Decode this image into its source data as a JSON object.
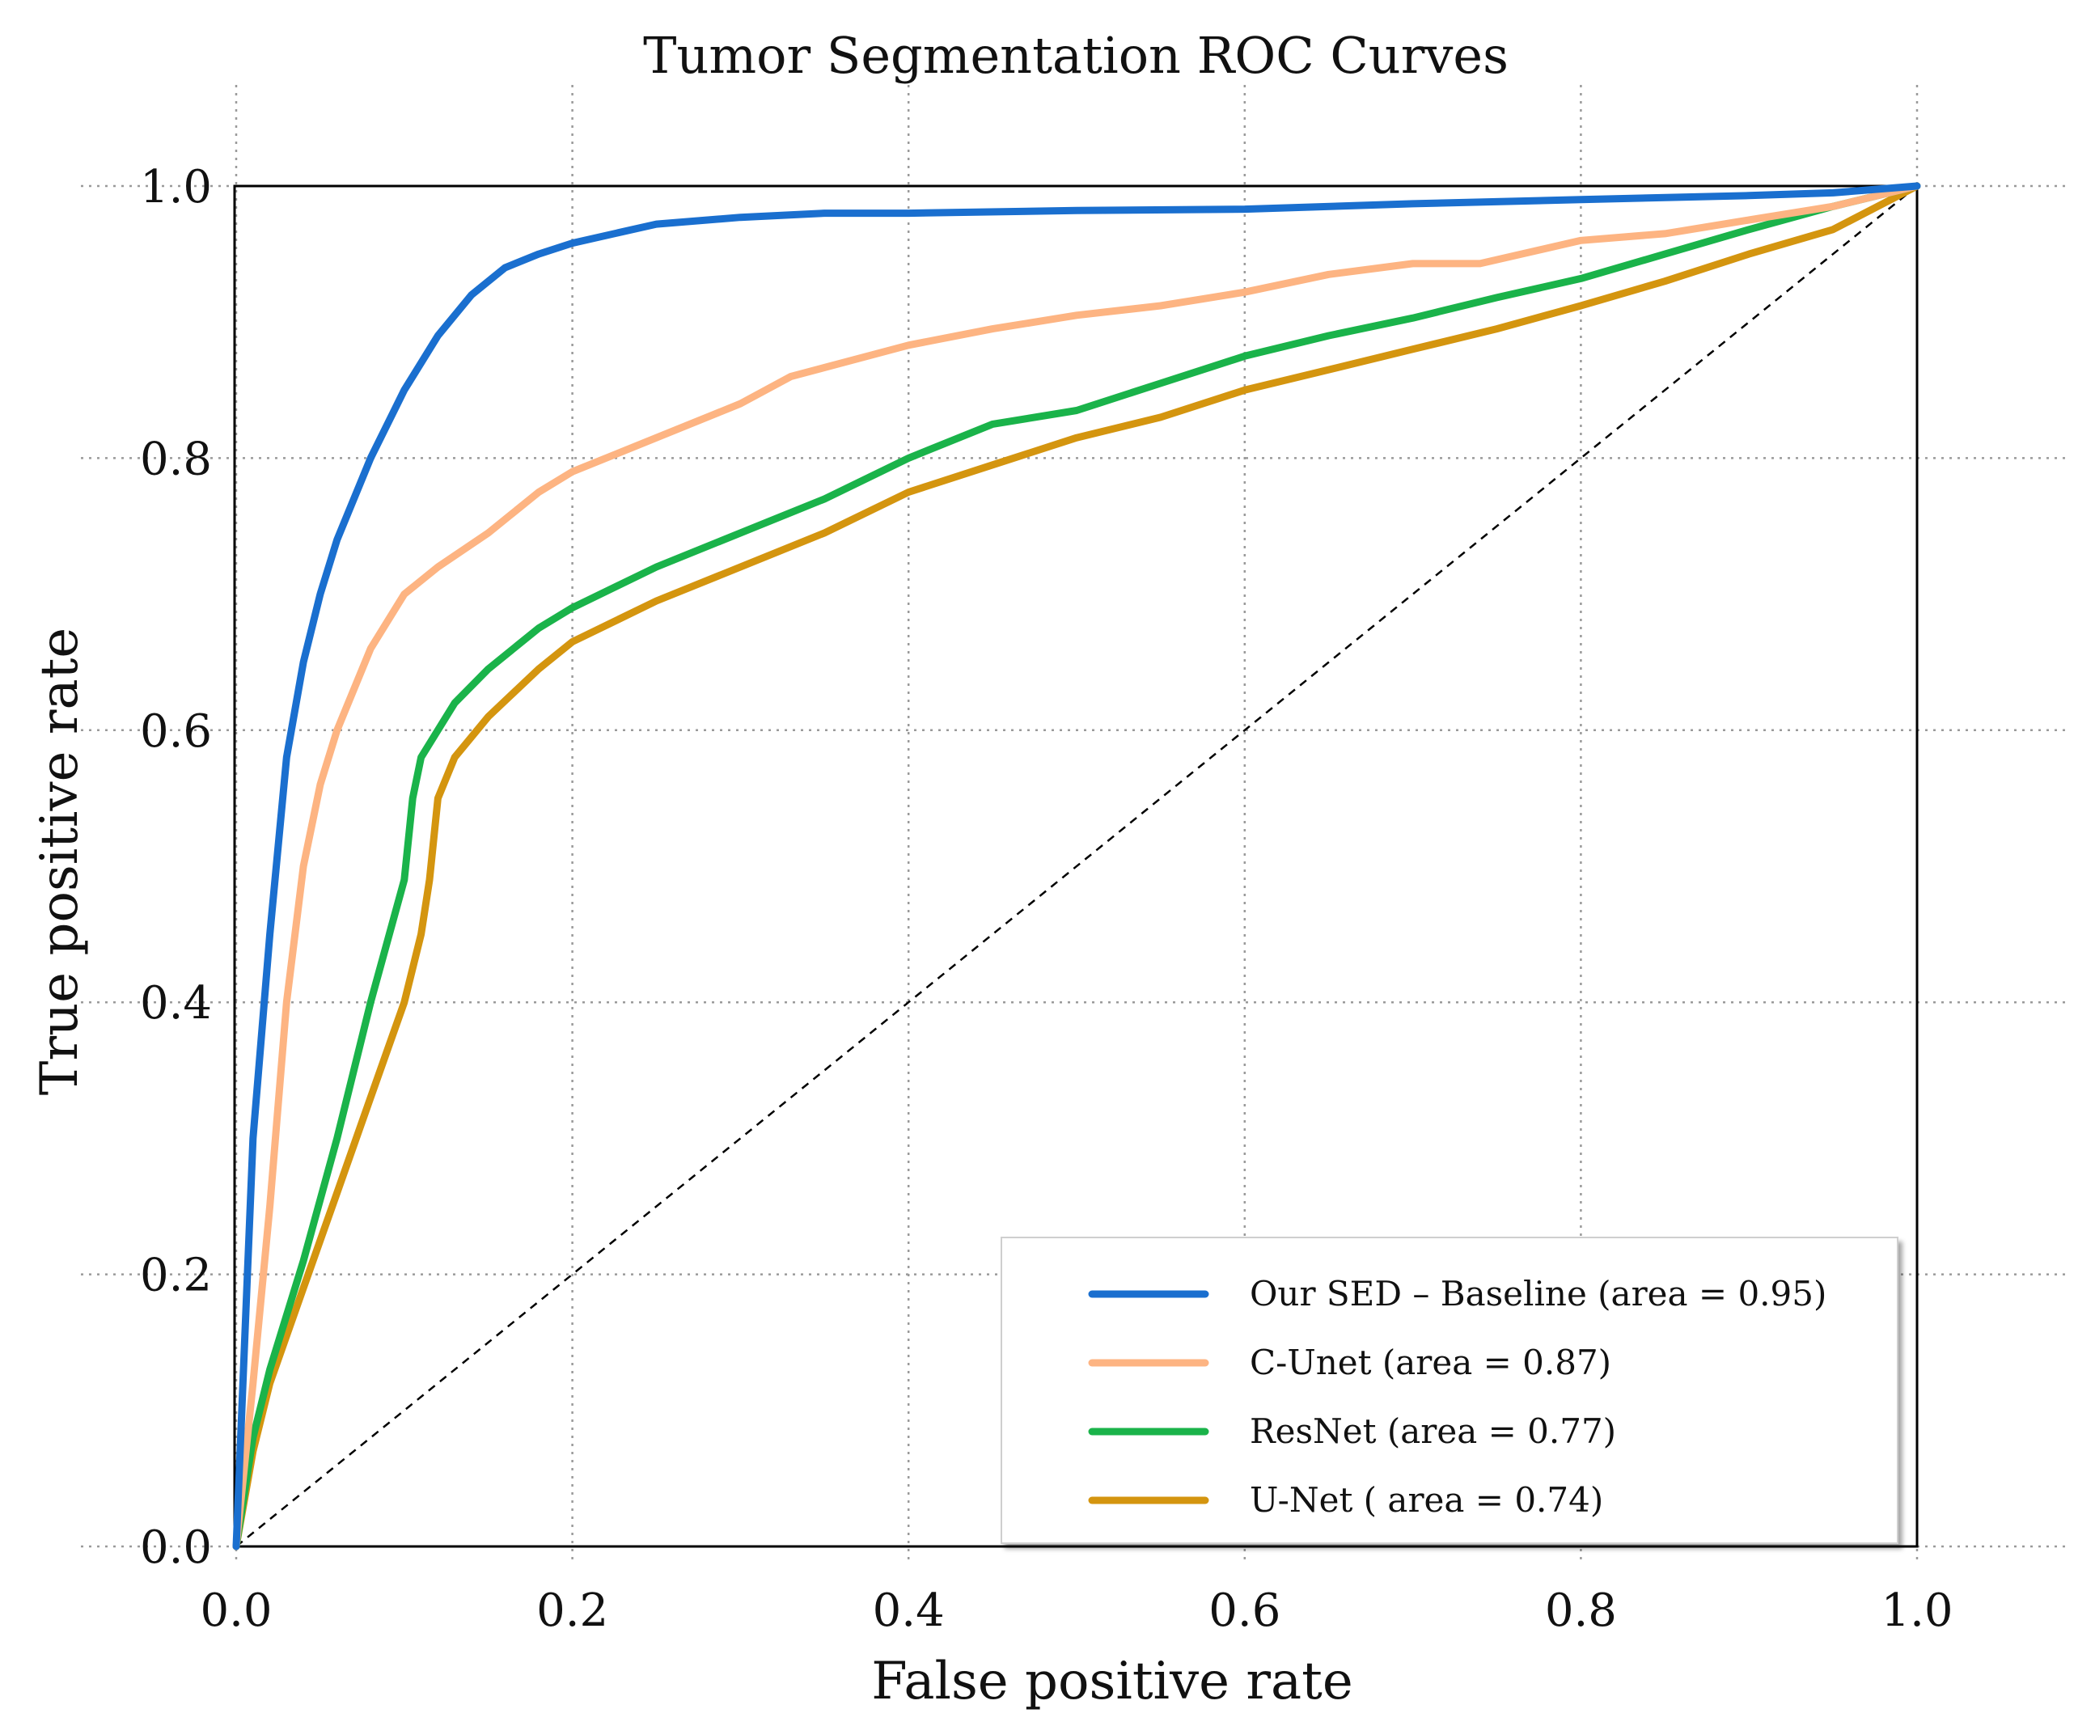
{
  "chart_data": {
    "type": "line",
    "title": "Tumor Segmentation ROC Curves",
    "xlabel": "False positive rate",
    "ylabel": "True positive rate",
    "xlim": [
      0.0,
      1.0
    ],
    "ylim": [
      0.0,
      1.0
    ],
    "xticks": [
      0.0,
      0.2,
      0.4,
      0.6,
      0.8,
      1.0
    ],
    "yticks": [
      0.0,
      0.2,
      0.4,
      0.6,
      0.8,
      1.0
    ],
    "xtick_labels": [
      "0.0",
      "0.2",
      "0.4",
      "0.6",
      "0.8",
      "1.0"
    ],
    "ytick_labels": [
      "0.0",
      "0.2",
      "0.4",
      "0.6",
      "0.8",
      "1.0"
    ],
    "grid": true,
    "legend_position": "bottom-right",
    "reference_line": {
      "x": [
        0,
        1
      ],
      "y": [
        0,
        1
      ],
      "style": "dashed",
      "color": "#000000"
    },
    "series": [
      {
        "name": "Our SED – Baseline (area = 0.95)",
        "color": "#1a6fcf",
        "x": [
          0.0,
          0.005,
          0.01,
          0.02,
          0.03,
          0.04,
          0.05,
          0.06,
          0.08,
          0.1,
          0.12,
          0.14,
          0.16,
          0.18,
          0.2,
          0.25,
          0.3,
          0.35,
          0.4,
          0.5,
          0.6,
          0.7,
          0.8,
          0.9,
          0.95,
          1.0
        ],
        "y": [
          0.0,
          0.15,
          0.3,
          0.45,
          0.58,
          0.65,
          0.7,
          0.74,
          0.8,
          0.85,
          0.89,
          0.92,
          0.94,
          0.95,
          0.958,
          0.972,
          0.977,
          0.98,
          0.98,
          0.982,
          0.983,
          0.987,
          0.99,
          0.993,
          0.995,
          1.0
        ]
      },
      {
        "name": "C-Unet (area = 0.87)",
        "color": "#fdb482",
        "x": [
          0.0,
          0.01,
          0.02,
          0.03,
          0.04,
          0.05,
          0.06,
          0.08,
          0.1,
          0.12,
          0.15,
          0.18,
          0.2,
          0.25,
          0.3,
          0.33,
          0.4,
          0.45,
          0.5,
          0.55,
          0.58,
          0.6,
          0.65,
          0.7,
          0.74,
          0.8,
          0.85,
          0.9,
          0.95,
          1.0
        ],
        "y": [
          0.0,
          0.12,
          0.25,
          0.4,
          0.5,
          0.56,
          0.6,
          0.66,
          0.7,
          0.72,
          0.745,
          0.775,
          0.79,
          0.815,
          0.84,
          0.86,
          0.883,
          0.895,
          0.905,
          0.912,
          0.918,
          0.922,
          0.935,
          0.943,
          0.943,
          0.96,
          0.965,
          0.975,
          0.985,
          1.0
        ]
      },
      {
        "name": "ResNet (area = 0.77)",
        "color": "#1ab34a",
        "x": [
          0.0,
          0.01,
          0.02,
          0.04,
          0.06,
          0.08,
          0.1,
          0.105,
          0.11,
          0.13,
          0.15,
          0.18,
          0.2,
          0.25,
          0.3,
          0.35,
          0.4,
          0.45,
          0.5,
          0.55,
          0.6,
          0.65,
          0.7,
          0.75,
          0.8,
          0.85,
          0.9,
          0.95,
          1.0
        ],
        "y": [
          0.0,
          0.08,
          0.13,
          0.21,
          0.3,
          0.4,
          0.49,
          0.55,
          0.58,
          0.62,
          0.645,
          0.675,
          0.69,
          0.72,
          0.745,
          0.77,
          0.8,
          0.825,
          0.835,
          0.855,
          0.875,
          0.89,
          0.903,
          0.918,
          0.932,
          0.95,
          0.968,
          0.985,
          1.0
        ]
      },
      {
        "name": "U-Net ( area = 0.74)",
        "color": "#d4950f",
        "x": [
          0.0,
          0.01,
          0.02,
          0.04,
          0.06,
          0.08,
          0.1,
          0.11,
          0.115,
          0.12,
          0.13,
          0.15,
          0.18,
          0.2,
          0.25,
          0.3,
          0.35,
          0.4,
          0.45,
          0.5,
          0.55,
          0.6,
          0.65,
          0.7,
          0.75,
          0.8,
          0.85,
          0.9,
          0.95,
          1.0
        ],
        "y": [
          0.0,
          0.07,
          0.12,
          0.19,
          0.26,
          0.33,
          0.4,
          0.45,
          0.49,
          0.55,
          0.58,
          0.61,
          0.645,
          0.665,
          0.695,
          0.72,
          0.745,
          0.775,
          0.795,
          0.815,
          0.83,
          0.85,
          0.865,
          0.88,
          0.895,
          0.912,
          0.93,
          0.95,
          0.968,
          1.0
        ]
      }
    ]
  }
}
